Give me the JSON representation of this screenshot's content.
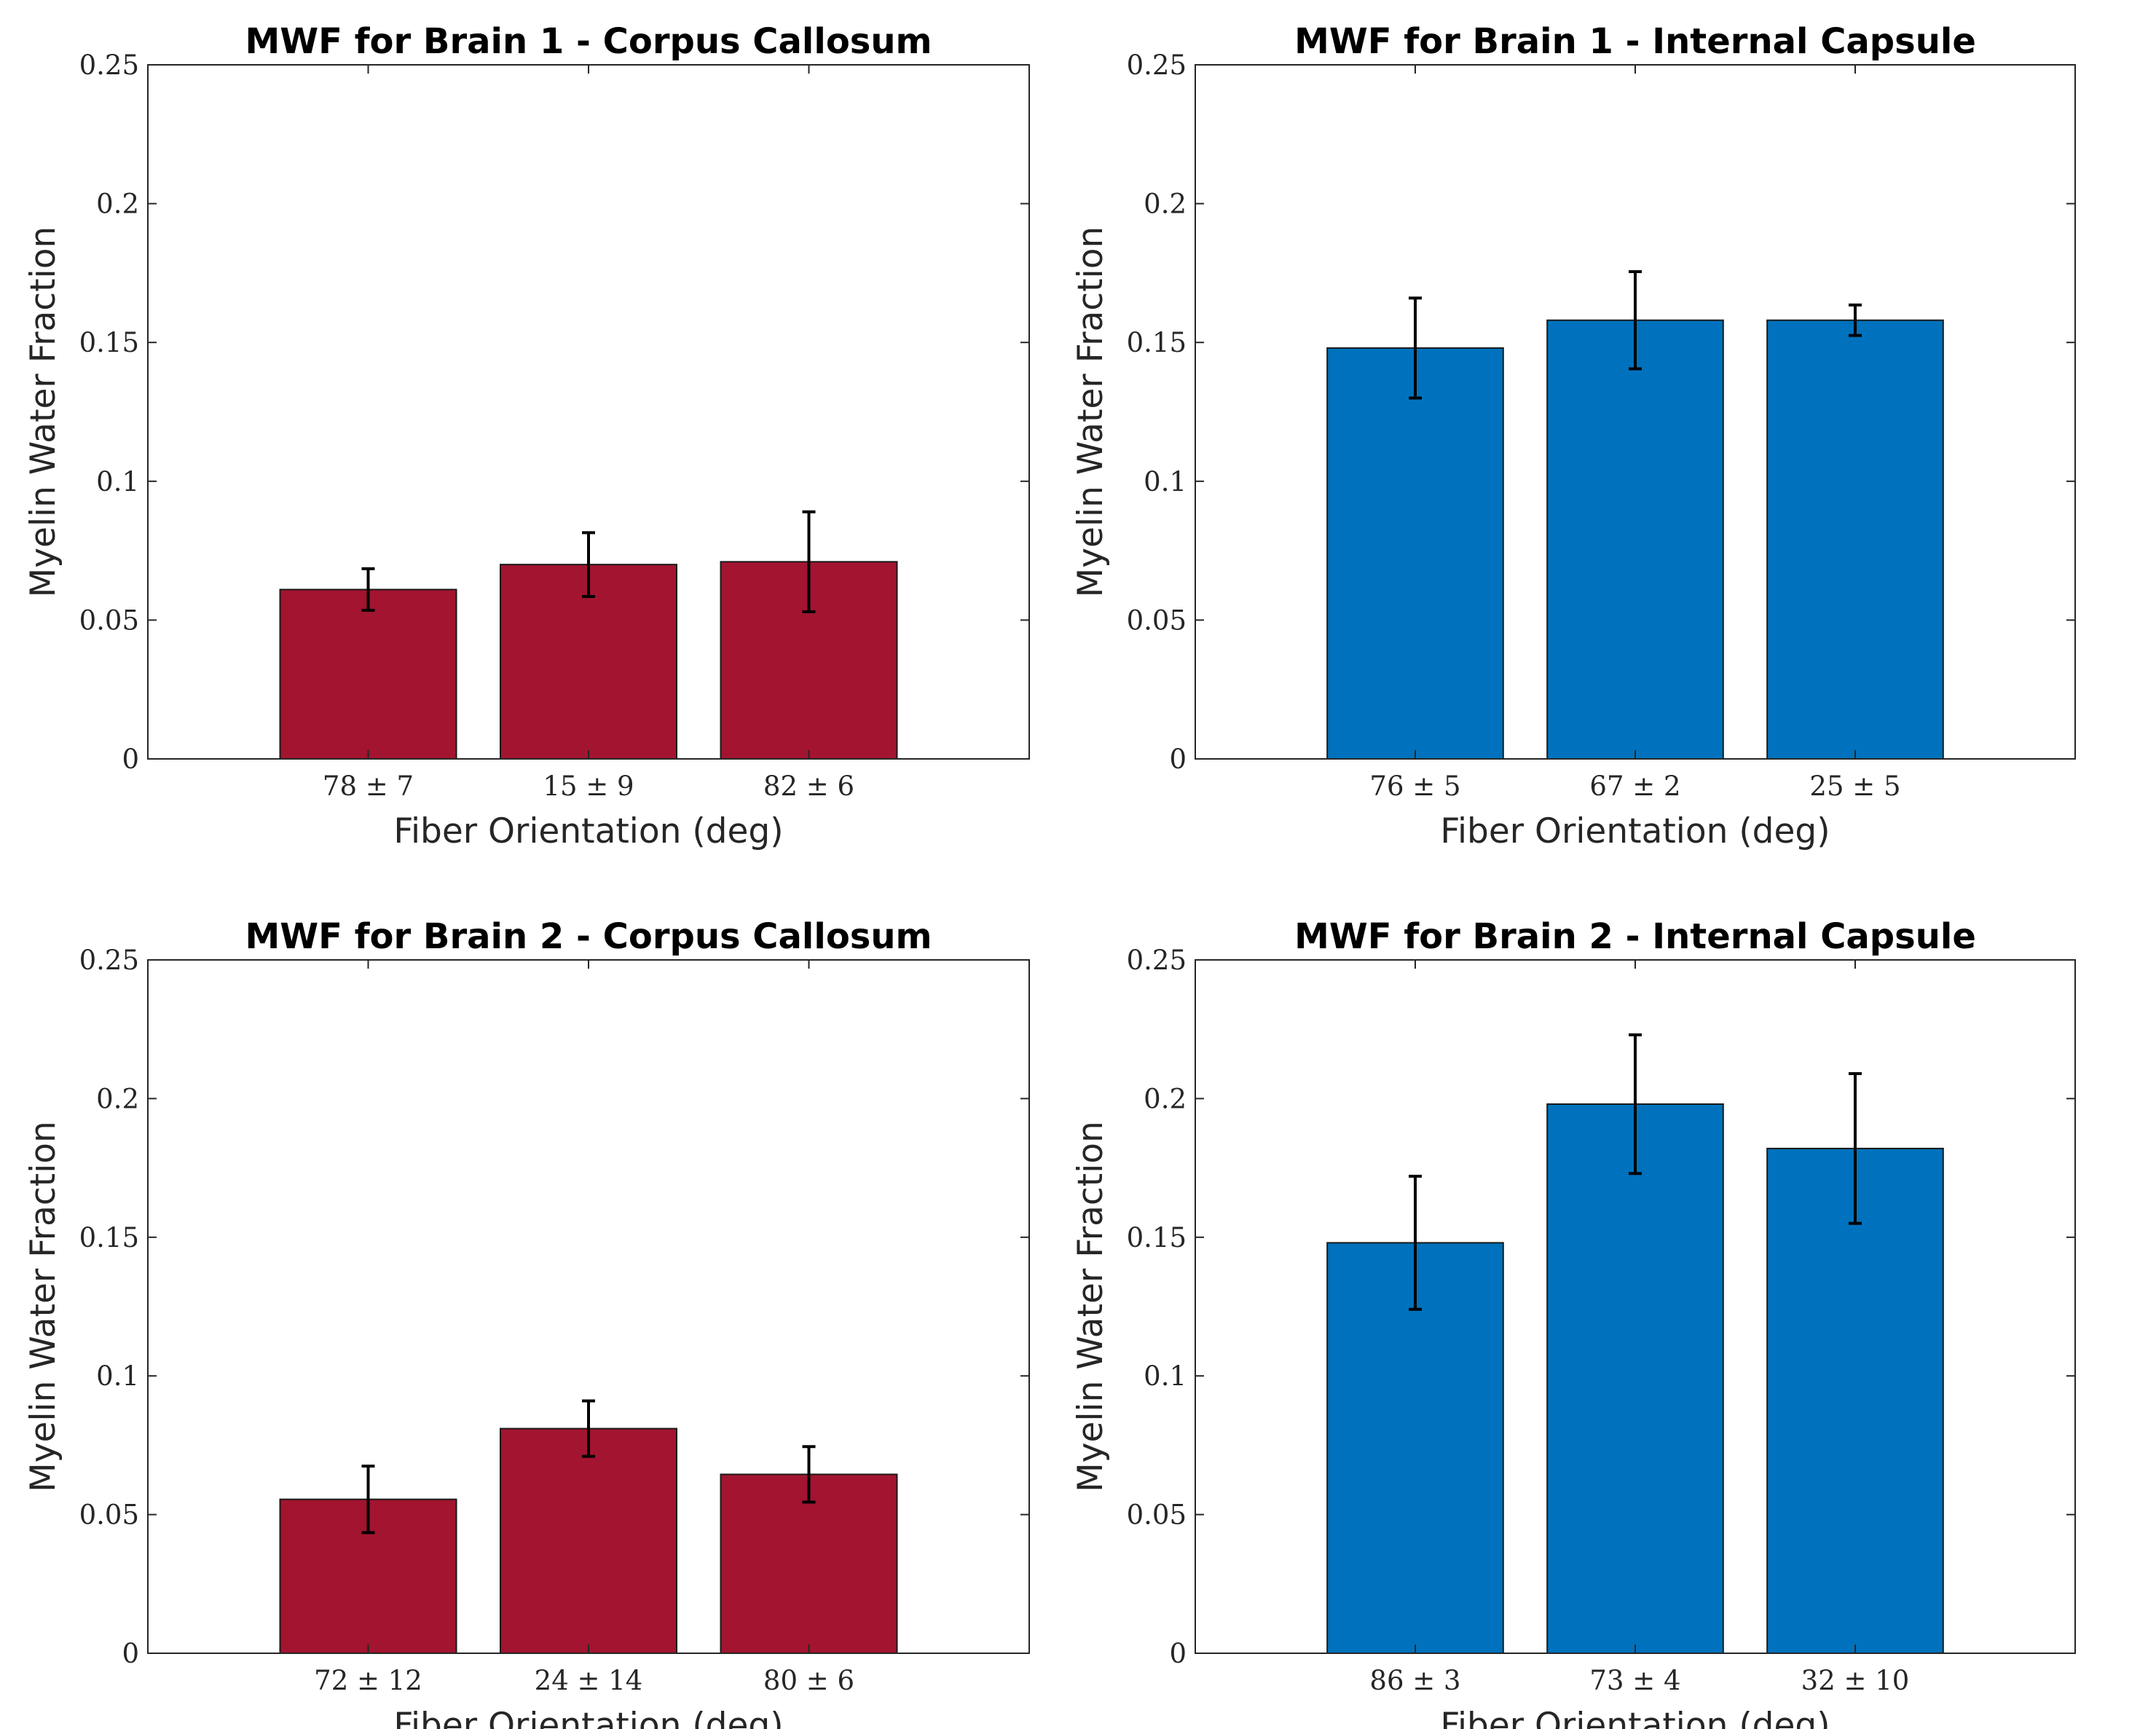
{
  "chart_data": [
    {
      "type": "bar",
      "title": "MWF for Brain 1 - Corpus Callosum",
      "xlabel": "Fiber Orientation (deg)",
      "ylabel": "Myelin Water Fraction",
      "categories": [
        "78 ± 7",
        "15 ± 9",
        "82 ± 6"
      ],
      "values": [
        0.061,
        0.07,
        0.071
      ],
      "errors": [
        0.0075,
        0.0115,
        0.018
      ],
      "ylim": [
        0,
        0.25
      ],
      "yticks": [
        0,
        0.05,
        0.1,
        0.15,
        0.2,
        0.25
      ],
      "ytick_labels": [
        "0",
        "0.05",
        "0.1",
        "0.15",
        "0.2",
        "0.25"
      ],
      "color": "#A2142F",
      "grid": false
    },
    {
      "type": "bar",
      "title": "MWF for Brain 1 - Internal Capsule",
      "xlabel": "Fiber Orientation (deg)",
      "ylabel": "Myelin Water Fraction",
      "categories": [
        "76 ± 5",
        "67 ± 2",
        "25 ± 5"
      ],
      "values": [
        0.148,
        0.158,
        0.158
      ],
      "errors": [
        0.018,
        0.0175,
        0.0055
      ],
      "ylim": [
        0,
        0.25
      ],
      "yticks": [
        0,
        0.05,
        0.1,
        0.15,
        0.2,
        0.25
      ],
      "ytick_labels": [
        "0",
        "0.05",
        "0.1",
        "0.15",
        "0.2",
        "0.25"
      ],
      "color": "#0072BD",
      "grid": false
    },
    {
      "type": "bar",
      "title": "MWF for Brain 2 - Corpus Callosum",
      "xlabel": "Fiber Orientation (deg)",
      "ylabel": "Myelin Water Fraction",
      "categories": [
        "72 ± 12",
        "24 ± 14",
        "80 ± 6"
      ],
      "values": [
        0.0555,
        0.081,
        0.0645
      ],
      "errors": [
        0.012,
        0.01,
        0.01
      ],
      "ylim": [
        0,
        0.25
      ],
      "yticks": [
        0,
        0.05,
        0.1,
        0.15,
        0.2,
        0.25
      ],
      "ytick_labels": [
        "0",
        "0.05",
        "0.1",
        "0.15",
        "0.2",
        "0.25"
      ],
      "color": "#A2142F",
      "grid": false
    },
    {
      "type": "bar",
      "title": "MWF for Brain 2 - Internal Capsule",
      "xlabel": "Fiber Orientation (deg)",
      "ylabel": "Myelin Water Fraction",
      "categories": [
        "86 ± 3",
        "73 ± 4",
        "32 ± 10"
      ],
      "values": [
        0.148,
        0.198,
        0.182
      ],
      "errors": [
        0.024,
        0.025,
        0.027
      ],
      "ylim": [
        0,
        0.25
      ],
      "yticks": [
        0,
        0.05,
        0.1,
        0.15,
        0.2,
        0.25
      ],
      "ytick_labels": [
        "0",
        "0.05",
        "0.1",
        "0.15",
        "0.2",
        "0.25"
      ],
      "color": "#0072BD",
      "grid": false
    }
  ]
}
